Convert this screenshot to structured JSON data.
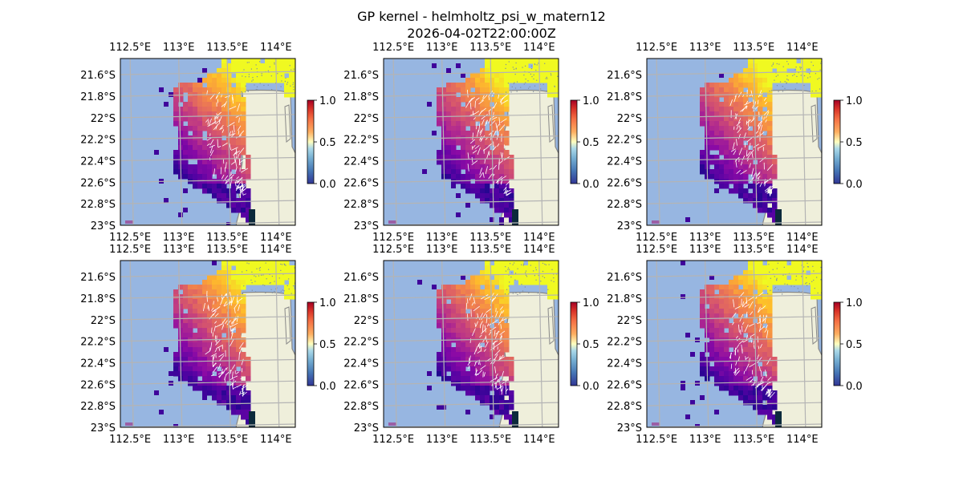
{
  "figure": {
    "title": "GP kernel - helmholtz_psi_w_matern12",
    "timestamp": "2026-04-02T22:00:00Z"
  },
  "map": {
    "lon_ticks": [
      "112.5°E",
      "113°E",
      "113.5°E",
      "114°E"
    ],
    "lat_ticks": [
      "21.6°S",
      "21.8°S",
      "22°S",
      "22.2°S",
      "22.4°S",
      "22.6°S",
      "22.8°S",
      "23°S"
    ],
    "lon_range": [
      112.4,
      114.2
    ],
    "lat_range": [
      -23.0,
      -21.45
    ],
    "colors": {
      "ocean": "#97b6e1",
      "land": "#efefdb",
      "coast": "#888888",
      "grid": "#b4b4b4",
      "arrows": "#ffffff"
    },
    "field_colormap": "plasma",
    "colorbar_colormap": "RdYlBu_r",
    "gridlines": true,
    "quiver": true
  },
  "colorbar": {
    "tick_labels": [
      "0.0",
      "0.5",
      "1.0"
    ],
    "range": [
      0.0,
      1.0
    ]
  },
  "panels": [
    {
      "id": "panel-1",
      "seed": 11
    },
    {
      "id": "panel-2",
      "seed": 23
    },
    {
      "id": "panel-3",
      "seed": 37
    },
    {
      "id": "panel-4",
      "seed": 41
    },
    {
      "id": "panel-5",
      "seed": 53
    },
    {
      "id": "panel-6",
      "seed": 67
    }
  ]
}
